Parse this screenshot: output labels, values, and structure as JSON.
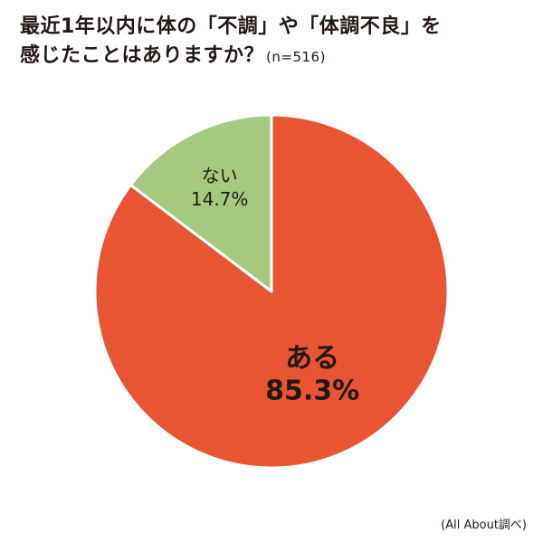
{
  "title": {
    "line1": "最近1年以内に体の「不調」や「体調不良」を",
    "line2": "感じたことはありますか？",
    "sample": "(n=516)"
  },
  "source": "(All About調べ)",
  "chart_data": {
    "type": "pie",
    "start_angle_deg": 0,
    "direction": "clockwise",
    "slices": [
      {
        "label": "ある",
        "value": 85.3,
        "value_label": "85.3%",
        "color": "#E85533",
        "label_color": "#231815"
      },
      {
        "label": "ない",
        "value": 14.7,
        "value_label": "14.7%",
        "color": "#A5C97E",
        "label_color": "#231815"
      }
    ],
    "slice_border_color": "#ffffff"
  }
}
